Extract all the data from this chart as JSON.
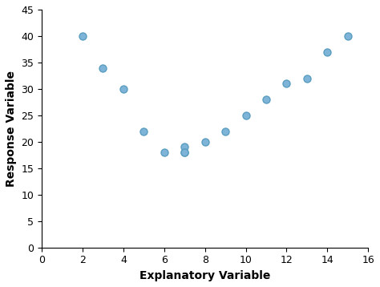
{
  "x": [
    2,
    3,
    4,
    5,
    6,
    7,
    7,
    7,
    8,
    9,
    10,
    11,
    12,
    13,
    14,
    15
  ],
  "y": [
    40,
    34,
    30,
    22,
    18,
    19,
    18,
    18,
    20,
    22,
    25,
    28,
    31,
    32,
    37,
    40
  ],
  "xlabel": "Explanatory Variable",
  "ylabel": "Response Variable",
  "xlim": [
    0,
    16
  ],
  "ylim": [
    0,
    45
  ],
  "xticks": [
    0,
    2,
    4,
    6,
    8,
    10,
    12,
    14,
    16
  ],
  "yticks": [
    0,
    5,
    10,
    15,
    20,
    25,
    30,
    35,
    40,
    45
  ],
  "marker_facecolor": "#7EB4D8",
  "marker_edgecolor": "#5A9DC0",
  "marker_size": 42,
  "marker_linewidth": 1.0,
  "background_color": "#ffffff",
  "xlabel_fontsize": 10,
  "ylabel_fontsize": 10,
  "tick_fontsize": 9,
  "label_fontweight": "bold"
}
